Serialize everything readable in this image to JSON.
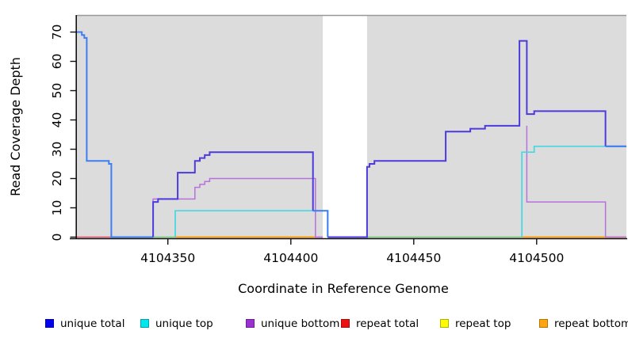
{
  "figure": {
    "xlabel": "Coordinate in Reference Genome",
    "ylabel": "Read Coverage Depth"
  },
  "chart_data": {
    "type": "line",
    "style": "step-after",
    "title": "",
    "xlabel": "Coordinate in Reference Genome",
    "ylabel": "Read Coverage Depth",
    "xlim": [
      4104313,
      4104536.5
    ],
    "ylim": [
      0,
      70
    ],
    "x_ticks": [
      4104350,
      4104400,
      4104450,
      4104500
    ],
    "y_ticks": [
      0,
      10,
      20,
      30,
      40,
      50,
      60,
      70
    ],
    "background": "#dcdcdc",
    "grid": false,
    "legend_position": "bottom",
    "gap_region": {
      "x_start": 4104413,
      "x_end": 4104431
    },
    "legend": [
      {
        "x": 57,
        "label": "unique total",
        "fill": "#0000ee",
        "border": "#0000b0"
      },
      {
        "x": 177,
        "label": "unique top",
        "fill": "#00e8ee",
        "border": "#00a3aa"
      },
      {
        "x": 310,
        "label": "unique bottom",
        "fill": "#9b30d0",
        "border": "#6e1f9a"
      },
      {
        "x": 430,
        "label": "repeat total",
        "fill": "#ee1111",
        "border": "#a80c0c"
      },
      {
        "x": 555,
        "label": "repeat top",
        "fill": "#fdfd00",
        "border": "#b0b000"
      },
      {
        "x": 680,
        "label": "repeat bottom",
        "fill": "#ffa510",
        "border": "#b87300"
      }
    ],
    "lines": [
      {
        "name": "repeat-total-zero",
        "color": "#e0506a",
        "width": 1.5,
        "steps": [
          [
            4104313,
            0
          ],
          [
            4104327,
            0
          ]
        ]
      },
      {
        "name": "zero-blend-green-a",
        "color": "#74c77c",
        "width": 1.5,
        "steps": [
          [
            4104344,
            0
          ],
          [
            4104353,
            0
          ]
        ]
      },
      {
        "name": "zero-blend-green-b",
        "color": "#74c77c",
        "width": 1.5,
        "steps": [
          [
            4104431,
            0
          ],
          [
            4104494,
            0
          ]
        ]
      },
      {
        "name": "repeat-bottom-zero-a",
        "color": "#ff9800",
        "width": 1.7,
        "steps": [
          [
            4104353,
            0
          ],
          [
            4104410,
            0
          ]
        ]
      },
      {
        "name": "repeat-bottom-zero-b",
        "color": "#ff9800",
        "width": 1.7,
        "steps": [
          [
            4104494,
            0
          ],
          [
            4104536.5,
            0
          ]
        ]
      },
      {
        "name": "unique-bottom-zero",
        "color": "#d966c9",
        "width": 1.5,
        "steps": [
          [
            4104410,
            0
          ],
          [
            4104413,
            0
          ]
        ]
      },
      {
        "name": "unique-bottom-mid",
        "color": "#b671dd",
        "width": 1.5,
        "steps": [
          [
            4104344,
            0
          ],
          [
            4104344,
            13
          ],
          [
            4104361,
            13
          ],
          [
            4104361,
            17
          ],
          [
            4104363,
            17
          ],
          [
            4104363,
            18
          ],
          [
            4104365,
            18
          ],
          [
            4104365,
            19
          ],
          [
            4104367,
            19
          ],
          [
            4104367,
            20
          ],
          [
            4104410,
            20
          ],
          [
            4104410,
            0
          ],
          [
            4104413,
            0
          ]
        ]
      },
      {
        "name": "unique-bottom-right",
        "color": "#b671dd",
        "width": 1.5,
        "steps": [
          [
            4104496,
            38
          ],
          [
            4104496,
            12
          ],
          [
            4104528,
            12
          ],
          [
            4104528,
            0
          ],
          [
            4104536.5,
            0
          ]
        ]
      },
      {
        "name": "unique-top-mid",
        "color": "#44d8e2",
        "width": 1.7,
        "steps": [
          [
            4104353,
            0
          ],
          [
            4104353,
            9
          ],
          [
            4104415,
            9
          ],
          [
            4104415,
            0
          ]
        ]
      },
      {
        "name": "unique-top-right",
        "color": "#44d8e2",
        "width": 1.7,
        "steps": [
          [
            4104494,
            0
          ],
          [
            4104494,
            29
          ],
          [
            4104499,
            29
          ],
          [
            4104499,
            31
          ],
          [
            4104536.5,
            31
          ]
        ]
      },
      {
        "name": "unique-total-left",
        "color": "#3f7df2",
        "width": 2,
        "steps": [
          [
            4104313,
            70
          ],
          [
            4104315,
            70
          ],
          [
            4104315,
            69
          ],
          [
            4104316,
            69
          ],
          [
            4104316,
            68
          ],
          [
            4104317,
            68
          ],
          [
            4104317,
            26
          ],
          [
            4104326,
            26
          ],
          [
            4104326,
            25
          ],
          [
            4104327,
            25
          ],
          [
            4104327,
            0
          ],
          [
            4104344,
            0
          ]
        ]
      },
      {
        "name": "unique-total-mid",
        "color": "#4b3bdc",
        "width": 2,
        "steps": [
          [
            4104344,
            0
          ],
          [
            4104344,
            12
          ],
          [
            4104346,
            12
          ],
          [
            4104346,
            13
          ],
          [
            4104354,
            13
          ],
          [
            4104354,
            22
          ],
          [
            4104361,
            22
          ],
          [
            4104361,
            26
          ],
          [
            4104363,
            26
          ],
          [
            4104363,
            27
          ],
          [
            4104365,
            27
          ],
          [
            4104365,
            28
          ],
          [
            4104367,
            28
          ],
          [
            4104367,
            29
          ],
          [
            4104409,
            29
          ],
          [
            4104409,
            9
          ]
        ]
      },
      {
        "name": "unique-total-pregap",
        "color": "#3f7df2",
        "width": 2,
        "steps": [
          [
            4104409,
            9
          ],
          [
            4104415,
            9
          ],
          [
            4104415,
            0
          ]
        ]
      },
      {
        "name": "unique-total-right",
        "color": "#4b3bdc",
        "width": 2,
        "steps": [
          [
            4104415,
            0
          ],
          [
            4104431,
            0
          ],
          [
            4104431,
            24
          ],
          [
            4104432,
            24
          ],
          [
            4104432,
            25
          ],
          [
            4104434,
            25
          ],
          [
            4104434,
            26
          ],
          [
            4104463,
            26
          ],
          [
            4104463,
            36
          ],
          [
            4104473,
            36
          ],
          [
            4104473,
            37
          ],
          [
            4104479,
            37
          ],
          [
            4104479,
            38
          ],
          [
            4104493,
            38
          ],
          [
            4104493,
            67
          ],
          [
            4104496,
            67
          ],
          [
            4104496,
            42
          ],
          [
            4104499,
            42
          ],
          [
            4104499,
            43
          ],
          [
            4104528,
            43
          ],
          [
            4104528,
            31
          ]
        ]
      },
      {
        "name": "unique-total-end",
        "color": "#3f7df2",
        "width": 2.2,
        "steps": [
          [
            4104528,
            31
          ],
          [
            4104536.5,
            31
          ]
        ]
      }
    ]
  }
}
